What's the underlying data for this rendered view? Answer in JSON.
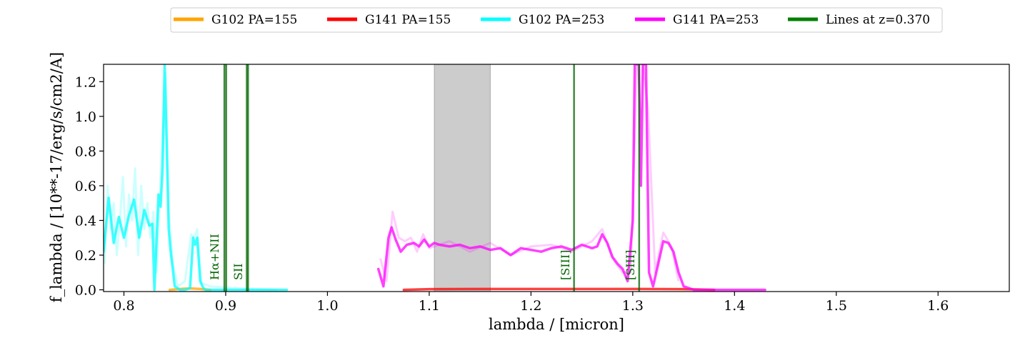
{
  "chart_data": {
    "type": "line",
    "xlabel": "lambda / [micron]",
    "ylabel": "f_lambda / [10**-17/erg/s/cm2/A]",
    "xlim": [
      0.78,
      1.67
    ],
    "ylim": [
      -0.01,
      1.3
    ],
    "xticks": [
      0.8,
      0.9,
      1.0,
      1.1,
      1.2,
      1.3,
      1.4,
      1.5,
      1.6
    ],
    "xtick_labels": [
      "0.8",
      "0.9",
      "1.0",
      "1.1",
      "1.2",
      "1.3",
      "1.4",
      "1.5",
      "1.6"
    ],
    "yticks": [
      0.0,
      0.2,
      0.4,
      0.6,
      0.8,
      1.0,
      1.2
    ],
    "ytick_labels": [
      "0.0",
      "0.2",
      "0.4",
      "0.6",
      "0.8",
      "1.0",
      "1.2"
    ],
    "grid": false,
    "legend_position": "top-center",
    "legend": [
      {
        "label": "G102 PA=155",
        "color": "#ffa500"
      },
      {
        "label": "G141 PA=155",
        "color": "#ff0000"
      },
      {
        "label": "G102 PA=253",
        "color": "#00ffff"
      },
      {
        "label": "G141 PA=253",
        "color": "#ff00ff"
      },
      {
        "label": "Lines at z=0.370",
        "color": "#008000"
      }
    ],
    "shaded_region": {
      "x": [
        1.105,
        1.16
      ],
      "color": "#999999"
    },
    "emission_lines": [
      {
        "label": "Hα+NII",
        "x": [
          0.8987,
          0.9005
        ],
        "label_x": 0.893
      },
      {
        "label": "SII",
        "x": [
          0.9207,
          0.922
        ],
        "label_x": 0.916
      },
      {
        "label": "[SIII]",
        "x": [
          1.2423
        ],
        "label_x": 1.2375
      },
      {
        "label": "[SIII]",
        "x": [
          1.3063
        ],
        "label_x": 1.3015
      }
    ],
    "series": [
      {
        "legend_index": 0,
        "color": "#ffa500",
        "x": [
          0.845,
          0.855,
          0.865,
          0.875,
          0.885
        ],
        "y": [
          0.0,
          0.005,
          0.008,
          0.005,
          0.0
        ]
      },
      {
        "legend_index": 1,
        "color": "#ff0000",
        "x": [
          1.075,
          1.1,
          1.15,
          1.2,
          1.25,
          1.3,
          1.35,
          1.38
        ],
        "y": [
          0.0,
          0.004,
          0.005,
          0.005,
          0.005,
          0.005,
          0.004,
          0.0
        ]
      },
      {
        "legend_index": 2,
        "color": "#00ffff",
        "x": [
          0.78,
          0.785,
          0.79,
          0.795,
          0.8,
          0.805,
          0.81,
          0.815,
          0.82,
          0.825,
          0.828,
          0.83,
          0.834,
          0.836,
          0.838,
          0.84,
          0.842,
          0.844,
          0.846,
          0.848,
          0.85,
          0.855,
          0.86,
          0.865,
          0.868,
          0.87,
          0.872,
          0.875,
          0.878,
          0.88,
          0.89,
          0.9,
          0.92,
          0.94,
          0.96
        ],
        "y": [
          0.22,
          0.53,
          0.27,
          0.42,
          0.3,
          0.43,
          0.52,
          0.3,
          0.46,
          0.37,
          0.38,
          0.0,
          0.55,
          0.48,
          0.7,
          1.3,
          0.85,
          0.35,
          0.22,
          0.12,
          0.02,
          0.0,
          0.0,
          0.01,
          0.3,
          0.26,
          0.3,
          0.05,
          0.01,
          0.0,
          0.0,
          0.0,
          0.0,
          0.0,
          0.0
        ],
        "raw_x": [
          0.781,
          0.784,
          0.787,
          0.79,
          0.793,
          0.796,
          0.799,
          0.802,
          0.805,
          0.808,
          0.811,
          0.814,
          0.817,
          0.82,
          0.823,
          0.826,
          0.829,
          0.832,
          0.838,
          0.841,
          0.844,
          0.848,
          0.853,
          0.86,
          0.866,
          0.869,
          0.872,
          0.876,
          0.885,
          0.91,
          0.95
        ],
        "raw_y": [
          0.15,
          0.6,
          0.35,
          0.5,
          0.2,
          0.4,
          0.65,
          0.25,
          0.55,
          0.4,
          0.7,
          0.2,
          0.6,
          0.35,
          0.5,
          0.3,
          0.45,
          0.1,
          0.9,
          1.25,
          0.45,
          0.15,
          0.02,
          0.05,
          0.32,
          0.3,
          0.35,
          0.04,
          0.02,
          0.01,
          0.0
        ]
      },
      {
        "legend_index": 3,
        "color": "#ff00ff",
        "x": [
          1.05,
          1.055,
          1.06,
          1.063,
          1.067,
          1.072,
          1.078,
          1.085,
          1.09,
          1.095,
          1.1,
          1.105,
          1.11,
          1.12,
          1.13,
          1.14,
          1.15,
          1.16,
          1.17,
          1.18,
          1.19,
          1.2,
          1.21,
          1.22,
          1.23,
          1.24,
          1.25,
          1.26,
          1.265,
          1.27,
          1.275,
          1.28,
          1.285,
          1.29,
          1.295,
          1.3,
          1.302,
          1.304,
          1.306,
          1.308,
          1.31,
          1.313,
          1.316,
          1.32,
          1.325,
          1.33,
          1.335,
          1.34,
          1.345,
          1.35,
          1.36,
          1.38,
          1.4,
          1.43
        ],
        "y": [
          0.12,
          0.02,
          0.3,
          0.36,
          0.29,
          0.22,
          0.26,
          0.27,
          0.25,
          0.29,
          0.25,
          0.27,
          0.26,
          0.25,
          0.26,
          0.24,
          0.25,
          0.23,
          0.24,
          0.2,
          0.24,
          0.23,
          0.22,
          0.24,
          0.25,
          0.23,
          0.26,
          0.24,
          0.25,
          0.32,
          0.27,
          0.19,
          0.15,
          0.12,
          0.05,
          0.4,
          1.3,
          1.3,
          1.3,
          0.6,
          1.3,
          1.3,
          0.1,
          0.02,
          0.15,
          0.28,
          0.27,
          0.22,
          0.1,
          0.02,
          0.0,
          0.0,
          0.0,
          0.0
        ],
        "raw_x": [
          1.052,
          1.058,
          1.064,
          1.07,
          1.076,
          1.082,
          1.088,
          1.094,
          1.1,
          1.12,
          1.14,
          1.16,
          1.18,
          1.2,
          1.22,
          1.24,
          1.26,
          1.27,
          1.28,
          1.29,
          1.298,
          1.304,
          1.31,
          1.315,
          1.322,
          1.33,
          1.338,
          1.345
        ],
        "raw_y": [
          0.18,
          0.05,
          0.45,
          0.3,
          0.28,
          0.3,
          0.22,
          0.32,
          0.24,
          0.28,
          0.22,
          0.27,
          0.2,
          0.25,
          0.26,
          0.22,
          0.28,
          0.35,
          0.18,
          0.1,
          0.1,
          1.3,
          1.3,
          1.05,
          0.1,
          0.33,
          0.25,
          0.05
        ]
      }
    ]
  }
}
